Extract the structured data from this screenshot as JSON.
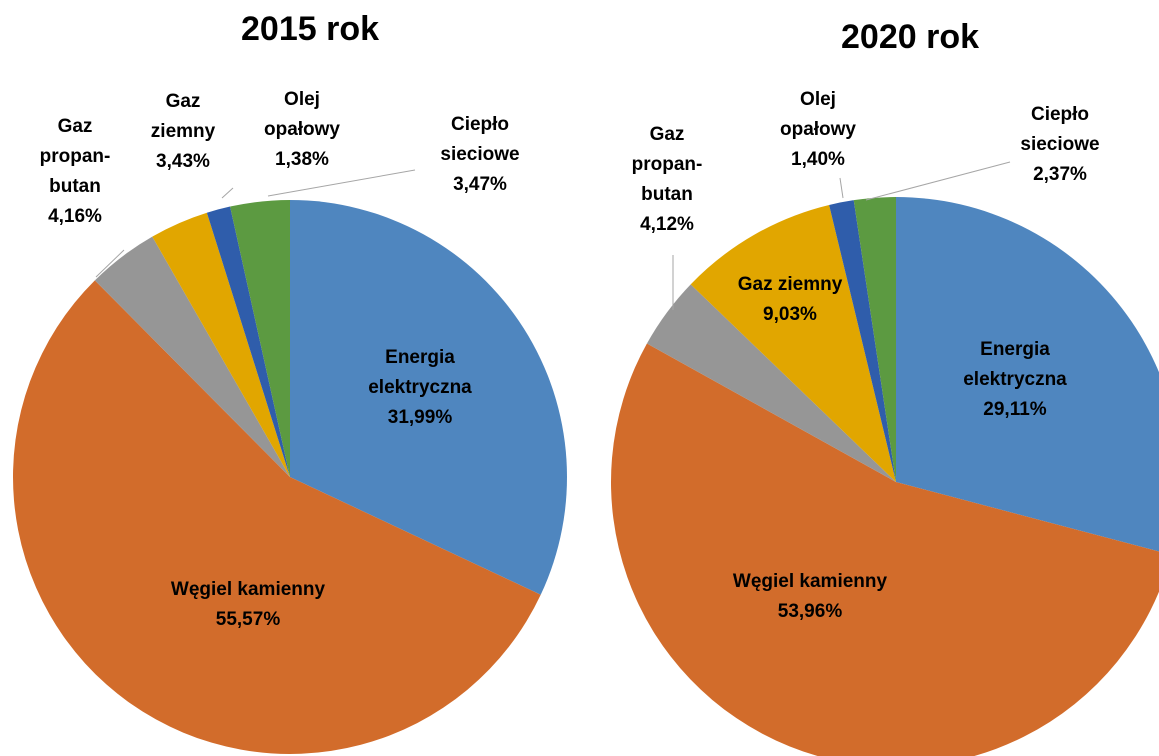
{
  "chart_data": [
    {
      "type": "pie",
      "title": "2015 rok",
      "categories": [
        "Energia\nelektryczna",
        "Węgiel kamienny",
        "Gaz\npropan-\nbutan",
        "Gaz\nziemny",
        "Olej\nopałowy",
        "Ciepło\nsieciowe"
      ],
      "values": [
        31.99,
        55.57,
        4.16,
        3.43,
        1.38,
        3.47
      ],
      "value_labels": [
        "31,99%",
        "55,57%",
        "4,16%",
        "3,43%",
        "1,38%",
        "3,47%"
      ],
      "colors": [
        "#4f86bf",
        "#d26c2b",
        "#969696",
        "#e1a600",
        "#2f5dab",
        "#5c9a41"
      ]
    },
    {
      "type": "pie",
      "title": "2020 rok",
      "categories": [
        "Energia\nelektryczna",
        "Węgiel kamienny",
        "Gaz\npropan-\nbutan",
        "Gaz ziemny",
        "Olej\nopałowy",
        "Ciepło\nsieciowe"
      ],
      "values": [
        29.11,
        53.96,
        4.12,
        9.03,
        1.4,
        2.37
      ],
      "value_labels": [
        "29,11%",
        "53,96%",
        "4,12%",
        "9,03%",
        "1,40%",
        "2,37%"
      ],
      "colors": [
        "#4f86bf",
        "#d26c2b",
        "#969696",
        "#e1a600",
        "#2f5dab",
        "#5c9a41"
      ]
    }
  ]
}
